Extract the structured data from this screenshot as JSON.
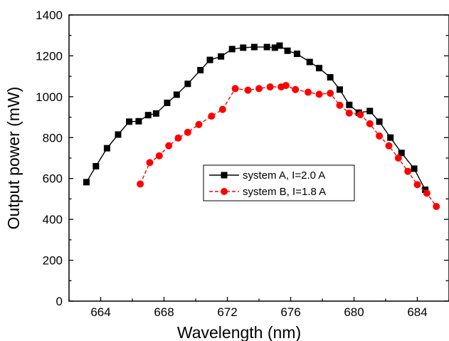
{
  "chart_data": {
    "type": "line",
    "title": "",
    "xlabel": "Wavelength (nm)",
    "ylabel": "Output power (mW)",
    "xlim": [
      662,
      686
    ],
    "ylim": [
      0,
      1400
    ],
    "x_ticks": [
      664,
      668,
      672,
      676,
      680,
      684
    ],
    "x_tick_labels": [
      "664",
      "668",
      "672",
      "676",
      "680",
      "684"
    ],
    "y_ticks": [
      0,
      200,
      400,
      600,
      800,
      1000,
      1200,
      1400
    ],
    "y_tick_labels": [
      "0",
      "200",
      "400",
      "600",
      "800",
      "1000",
      "1200",
      "1400"
    ],
    "grid": false,
    "legend_position": "center-right",
    "series": [
      {
        "name": "system A, I=2.0 A",
        "color": "#000000",
        "marker": "square",
        "line_style": "solid",
        "x": [
          663.1,
          663.7,
          664.4,
          665.1,
          665.8,
          666.4,
          667.0,
          667.5,
          668.2,
          668.8,
          669.5,
          670.3,
          670.9,
          671.6,
          672.3,
          673.0,
          673.7,
          674.5,
          675.0,
          675.3,
          675.8,
          676.4,
          677.2,
          677.8,
          678.5,
          679.1,
          679.7,
          680.3,
          681.0,
          681.6,
          682.3,
          683.0,
          683.8,
          684.5
        ],
        "y": [
          582,
          660,
          748,
          815,
          878,
          880,
          910,
          918,
          970,
          1010,
          1063,
          1130,
          1180,
          1197,
          1233,
          1240,
          1243,
          1243,
          1240,
          1250,
          1225,
          1210,
          1170,
          1140,
          1095,
          1035,
          960,
          922,
          930,
          878,
          800,
          725,
          648,
          545
        ]
      },
      {
        "name": "system B, I=1.8 A",
        "color": "#ff0000",
        "marker": "circle",
        "line_style": "dashed",
        "x": [
          666.5,
          667.1,
          667.7,
          668.3,
          668.9,
          669.5,
          670.2,
          671.0,
          671.7,
          672.5,
          673.3,
          674.0,
          674.7,
          675.4,
          675.7,
          676.3,
          677.1,
          677.8,
          678.5,
          679.1,
          679.7,
          680.4,
          681.0,
          681.6,
          682.2,
          682.8,
          683.4,
          684.0,
          684.6,
          685.2
        ],
        "y": [
          573,
          678,
          711,
          760,
          798,
          826,
          864,
          905,
          938,
          1040,
          1032,
          1040,
          1048,
          1048,
          1055,
          1035,
          1022,
          1012,
          1017,
          958,
          920,
          912,
          868,
          808,
          760,
          700,
          635,
          570,
          528,
          463
        ]
      }
    ]
  }
}
